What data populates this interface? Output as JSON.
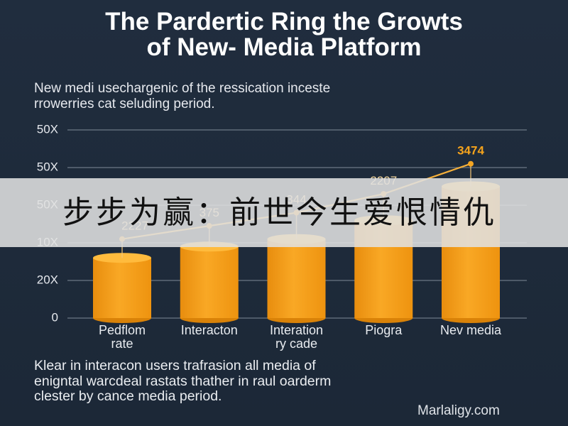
{
  "title": {
    "line1": "The Pardertic Ring the Growts",
    "line2": "of New- Media Platform"
  },
  "subtitle": {
    "line1": "New medi usechargenic of the ressication inceste",
    "line2": "rrowerries cat seluding period."
  },
  "chart_data": {
    "type": "bar",
    "categories": [
      "Pedflom\nrate",
      "Interacton",
      "Interation\nry cade",
      "Piogra",
      "Nev media"
    ],
    "yticks": {
      "values": [
        0,
        1,
        2,
        3,
        4,
        5
      ],
      "labels": [
        "0",
        "20X",
        "10X",
        "50X",
        "50X",
        "50X"
      ]
    },
    "ylim": [
      0,
      5
    ],
    "grid": true,
    "series": [
      {
        "type": "bar",
        "values": [
          1.6,
          1.9,
          2.1,
          2.6,
          3.5
        ]
      },
      {
        "type": "line",
        "values": [
          2.1,
          2.45,
          2.8,
          3.3,
          4.1
        ],
        "labels": [
          "2227",
          "375",
          "344",
          "2207",
          "3474"
        ]
      }
    ]
  },
  "footnote": {
    "line1": "Klear in interacon users trafrasion all media of",
    "line2": "enigntal warcdeal rastats thather in raul oarderm",
    "line3": "clester by cance media period."
  },
  "source": "Marlaligy.com",
  "banner": {
    "text": "步步为赢：前世今生爱恨情仇"
  },
  "colors": {
    "background": "#1e2a3a",
    "bar": "#f7a21b",
    "line": "#f5a623",
    "highlight_label": "#f5a31c",
    "banner": "#e0e0e0"
  }
}
